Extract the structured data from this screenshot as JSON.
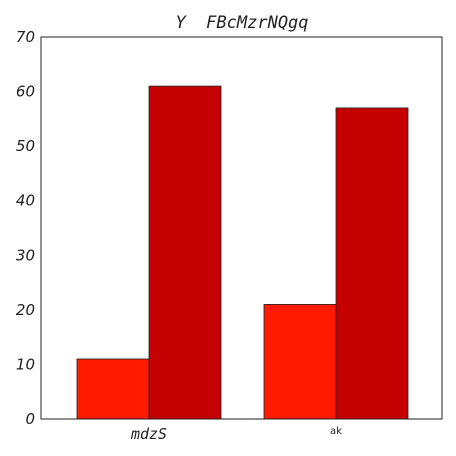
{
  "chart_data": {
    "type": "bar",
    "title": "Y  FBcMzrNQgq",
    "xlabel": "",
    "ylabel": "",
    "categories": [
      "mdzS",
      "ak"
    ],
    "series": [
      {
        "values": [
          11,
          21
        ],
        "color": "#ff1a00"
      },
      {
        "values": [
          61,
          57
        ],
        "color": "#c40000"
      }
    ],
    "ylim": [
      0,
      70
    ],
    "yticks": [
      0,
      10,
      20,
      30,
      40,
      50,
      60,
      70
    ],
    "grid": false
  }
}
